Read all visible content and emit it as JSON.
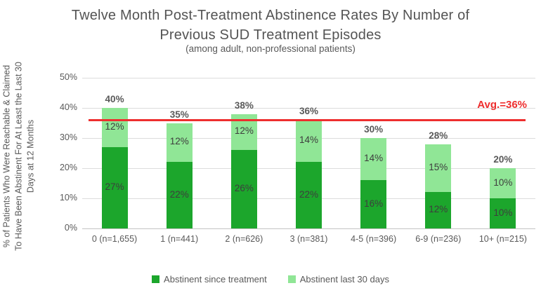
{
  "chart_data": {
    "type": "bar",
    "stacked": true,
    "title_line1": "Twelve Month Post-Treatment Abstinence Rates By Number of",
    "title_line2": "Previous SUD Treatment Episodes",
    "subtitle": "(among adult, non-professional patients)",
    "ylabel_lines": [
      "% of Patients Who Were Reachable & Claimed",
      "To Have Been Abstinent For At Least the Last 30",
      "Days at 12 Months"
    ],
    "ylim": [
      0,
      50
    ],
    "yticks": [
      "0%",
      "10%",
      "20%",
      "30%",
      "40%",
      "50%"
    ],
    "grid": true,
    "legend_position": "bottom",
    "categories": [
      "0 (n=1,655)",
      "1 (n=441)",
      "2 (n=626)",
      "3 (n=381)",
      "4-5 (n=396)",
      "6-9 (n=236)",
      "10+ (n=215)"
    ],
    "series": [
      {
        "name": "Abstinent since treatment",
        "color": "#1ca62c",
        "values": [
          27,
          22,
          26,
          22,
          16,
          12,
          10
        ]
      },
      {
        "name": "Abstinent last 30 days",
        "color": "#90e696",
        "values": [
          12,
          12,
          12,
          14,
          14,
          15,
          10
        ]
      }
    ],
    "totals": [
      40,
      35,
      38,
      36,
      30,
      28,
      20
    ],
    "avg_line": {
      "value": 36,
      "label": "Avg.=36%",
      "color": "#ee2e2e"
    },
    "colors": {
      "grid": "#dcdcdc",
      "axis_text": "#595959",
      "segment_label_text": "#3d3d3d",
      "total_label_text": "#595959"
    }
  }
}
